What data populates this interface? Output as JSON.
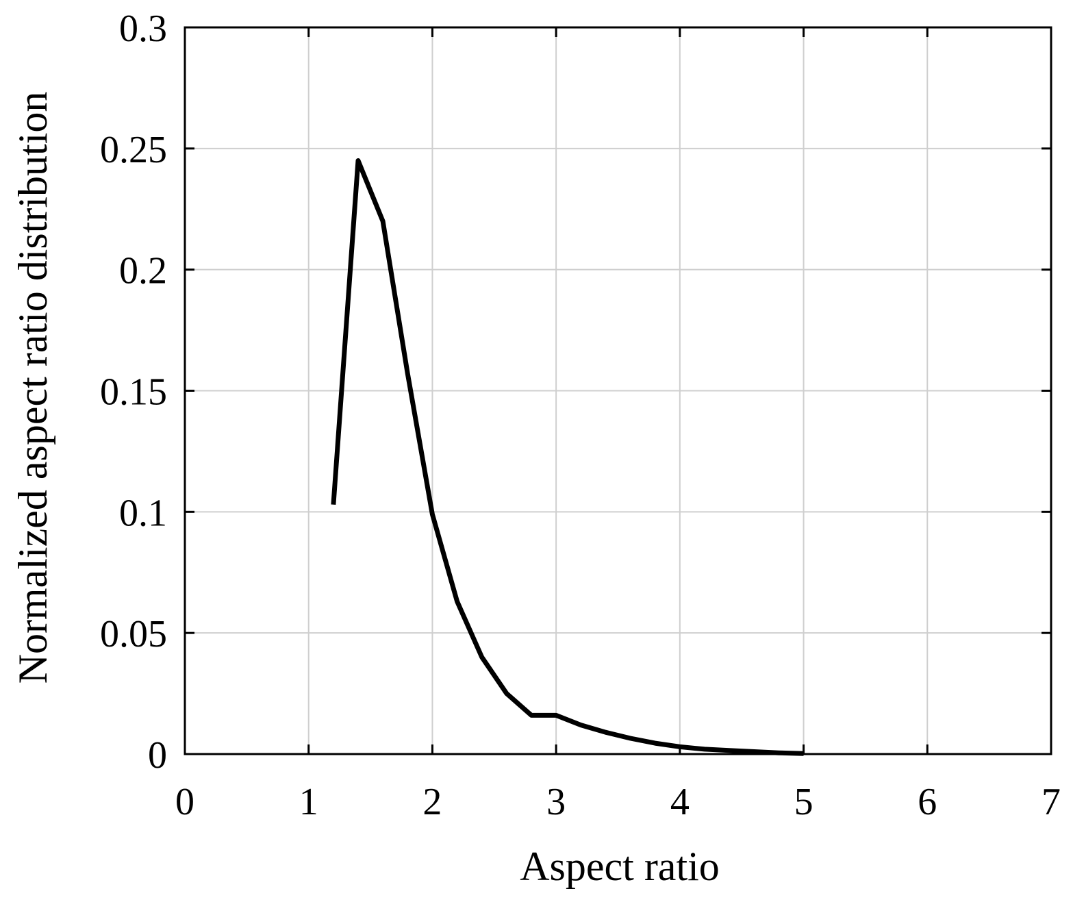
{
  "chart_data": {
    "type": "line",
    "title": "",
    "xlabel": "Aspect ratio",
    "ylabel": "Normalized aspect ratio distribution",
    "xlim": [
      0,
      7
    ],
    "ylim": [
      0,
      0.3
    ],
    "xticks": [
      0,
      1,
      2,
      3,
      4,
      5,
      6,
      7
    ],
    "xtick_labels": [
      "0",
      "1",
      "2",
      "3",
      "4",
      "5",
      "6",
      "7"
    ],
    "yticks": [
      0,
      0.05,
      0.1,
      0.15,
      0.2,
      0.25,
      0.3
    ],
    "ytick_labels": [
      "0",
      "0.05",
      "0.1",
      "0.15",
      "0.2",
      "0.25",
      "0.3"
    ],
    "grid": true,
    "series": [
      {
        "color": "#000000",
        "x": [
          1.2,
          1.4,
          1.6,
          1.8,
          2.0,
          2.2,
          2.4,
          2.6,
          2.8,
          3.0,
          3.2,
          3.4,
          3.6,
          3.8,
          4.0,
          4.2,
          4.4,
          4.6,
          4.8,
          5.0
        ],
        "y": [
          0.103,
          0.245,
          0.22,
          0.157,
          0.099,
          0.063,
          0.04,
          0.025,
          0.016,
          0.016,
          0.012,
          0.009,
          0.0065,
          0.0045,
          0.003,
          0.002,
          0.0015,
          0.001,
          0.0005,
          0.0002
        ]
      }
    ]
  }
}
